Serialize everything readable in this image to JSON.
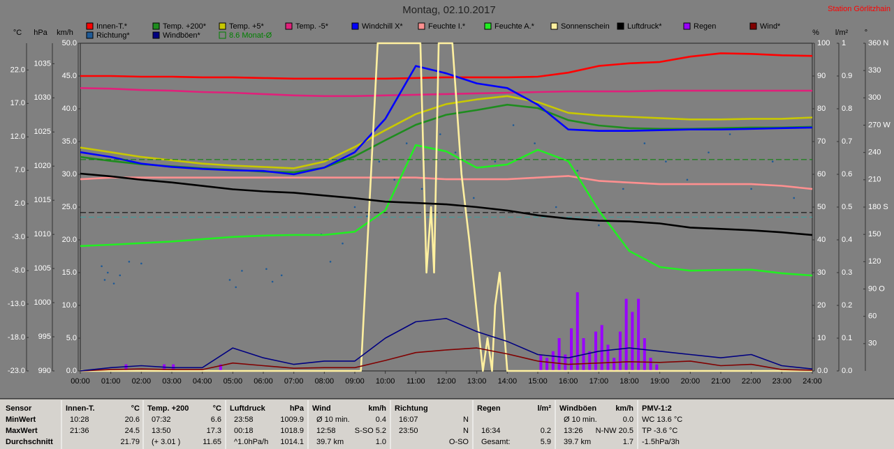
{
  "chart_data": {
    "type": "line",
    "title": "Montag, 02.10.2017",
    "station": "Station Görlitzhain",
    "ylabel": "°C",
    "y2label": "hPa",
    "y3label": "km/h",
    "y4label": "%",
    "y5label": "l/m²",
    "y6label": "°",
    "xlim": [
      0,
      24
    ],
    "xticks": [
      {
        "value": 0,
        "label": "00:00"
      },
      {
        "value": 1,
        "label": "01:00"
      },
      {
        "value": 2,
        "label": "02:00"
      },
      {
        "value": 3,
        "label": "03:00"
      },
      {
        "value": 4,
        "label": "04:00"
      },
      {
        "value": 5,
        "label": "05:00"
      },
      {
        "value": 6,
        "label": "06:00"
      },
      {
        "value": 7,
        "label": "07:00"
      },
      {
        "value": 8,
        "label": "08:00"
      },
      {
        "value": 9,
        "label": "09:00"
      },
      {
        "value": 10,
        "label": "10:00"
      },
      {
        "value": 11,
        "label": "11:00"
      },
      {
        "value": 12,
        "label": "12:00"
      },
      {
        "value": 13,
        "label": "13:00"
      },
      {
        "value": 14,
        "label": "14:00"
      },
      {
        "value": 15,
        "label": "15:00"
      },
      {
        "value": 16,
        "label": "16:00"
      },
      {
        "value": 17,
        "label": "17:00"
      },
      {
        "value": 18,
        "label": "18:00"
      },
      {
        "value": 19,
        "label": "19:00"
      },
      {
        "value": 20,
        "label": "20:00"
      },
      {
        "value": 21,
        "label": "21:00"
      },
      {
        "value": 22,
        "label": "22:00"
      },
      {
        "value": 23,
        "label": "23:00"
      },
      {
        "value": 24,
        "label": "24:00"
      }
    ],
    "ylim": [
      -23,
      26
    ],
    "yticks": [
      {
        "value": 22,
        "label": "22.0"
      },
      {
        "value": 17,
        "label": "17.0"
      },
      {
        "value": 12,
        "label": "12.0"
      },
      {
        "value": 7,
        "label": "7.0"
      },
      {
        "value": 2,
        "label": "2.0"
      },
      {
        "value": -3,
        "label": "-3.0"
      },
      {
        "value": -8,
        "label": "-8.0"
      },
      {
        "value": -13,
        "label": "-13.0"
      },
      {
        "value": -18,
        "label": "-18.0"
      },
      {
        "value": -23,
        "label": "-23.0"
      }
    ],
    "y2lim": [
      990,
      1038
    ],
    "y2ticks": [
      1035,
      1030,
      1025,
      1020,
      1015,
      1010,
      1005,
      1000,
      995,
      990
    ],
    "y3lim": [
      0,
      50
    ],
    "y3ticks": [
      {
        "value": 50,
        "label": "50.0"
      },
      {
        "value": 45,
        "label": "45.0"
      },
      {
        "value": 40,
        "label": "40.0"
      },
      {
        "value": 35,
        "label": "35.0"
      },
      {
        "value": 30,
        "label": "30.0"
      },
      {
        "value": 25,
        "label": "25.0"
      },
      {
        "value": 20,
        "label": "20.0"
      },
      {
        "value": 15,
        "label": "15.0"
      },
      {
        "value": 10,
        "label": "10.0"
      },
      {
        "value": 5,
        "label": "5.0"
      },
      {
        "value": 0,
        "label": "0.0"
      }
    ],
    "y4lim": [
      0,
      100
    ],
    "y4ticks": [
      100,
      90,
      80,
      70,
      60,
      50,
      40,
      30,
      20,
      10,
      {
        "value": 0,
        "label": "0.0"
      }
    ],
    "y5lim": [
      0,
      1
    ],
    "y5ticks": [
      1,
      0.9,
      0.8,
      0.7,
      0.6,
      0.5,
      0.4,
      0.3,
      0.2,
      0.1,
      {
        "value": 0,
        "label": "0.0"
      }
    ],
    "y6lim": [
      0,
      360
    ],
    "y6ticks": [
      {
        "value": 360,
        "label": "360 N"
      },
      330,
      300,
      {
        "value": 270,
        "label": "270 W"
      },
      240,
      210,
      {
        "value": 180,
        "label": "180 S"
      },
      150,
      120,
      {
        "value": 90,
        "label": "90 O"
      },
      60,
      30
    ],
    "grid": false,
    "reference_lines": [
      {
        "axis": "y2",
        "value": 1013.2,
        "color": "#000000"
      },
      {
        "axis": "y",
        "value": 0,
        "color": "#3aa0a0"
      }
    ],
    "x": [
      0,
      1,
      2,
      3,
      4,
      5,
      6,
      7,
      8,
      9,
      10,
      11,
      12,
      13,
      14,
      15,
      16,
      17,
      18,
      19,
      20,
      21,
      22,
      23,
      24
    ],
    "series": [
      {
        "name": "Innen-T.*",
        "color": "#ff0000",
        "axis": "y",
        "values": [
          21.1,
          21.1,
          21.0,
          21.0,
          20.9,
          20.9,
          20.8,
          20.7,
          20.7,
          20.7,
          20.7,
          20.8,
          20.9,
          20.9,
          20.9,
          21.0,
          21.6,
          22.6,
          23.0,
          23.2,
          24.0,
          24.5,
          24.4,
          24.2,
          24.1
        ]
      },
      {
        "name": "Temp. +200*",
        "color": "#1e8c1e",
        "axis": "y",
        "values": [
          9.0,
          8.4,
          7.9,
          7.6,
          7.3,
          7.1,
          6.8,
          6.7,
          7.4,
          9.1,
          11.5,
          13.8,
          15.3,
          16.0,
          16.8,
          16.3,
          14.5,
          13.7,
          13.3,
          13.2,
          13.2,
          13.3,
          13.4,
          13.4,
          13.5
        ]
      },
      {
        "name": "Temp. +5*",
        "color": "#c8c800",
        "axis": "y",
        "values": [
          10.4,
          9.7,
          9.0,
          8.5,
          8.0,
          7.7,
          7.5,
          7.3,
          8.3,
          10.5,
          13.0,
          15.4,
          16.9,
          17.6,
          18.1,
          17.2,
          15.6,
          15.2,
          15.0,
          14.8,
          14.6,
          14.6,
          14.7,
          14.7,
          14.9
        ]
      },
      {
        "name": "Temp. -5*",
        "color": "#e0207a",
        "axis": "y",
        "values": [
          19.3,
          19.2,
          19.0,
          18.9,
          18.7,
          18.6,
          18.4,
          18.2,
          18.1,
          18.1,
          18.2,
          18.3,
          18.4,
          18.5,
          18.6,
          18.7,
          18.8,
          18.8,
          18.8,
          18.9,
          18.9,
          18.9,
          18.9,
          18.9,
          18.9
        ]
      },
      {
        "name": "Windchill X*",
        "color": "#0000ff",
        "axis": "y",
        "values": [
          9.7,
          9.0,
          8.0,
          7.5,
          7.2,
          7.0,
          6.9,
          6.4,
          7.4,
          9.7,
          14.7,
          22.6,
          21.5,
          20.0,
          19.3,
          16.8,
          13.1,
          12.9,
          12.9,
          13.0,
          13.1,
          13.1,
          13.2,
          13.3,
          13.4
        ]
      },
      {
        "name": "Feuchte I.*",
        "color": "#ff9090",
        "axis": "y4",
        "values": [
          58.5,
          59,
          59,
          59,
          59,
          59,
          59,
          59,
          59,
          59,
          59,
          59,
          58.5,
          58.5,
          58.5,
          59,
          59.5,
          58,
          57.5,
          57,
          57,
          57,
          57,
          56.5,
          55.5
        ]
      },
      {
        "name": "Feuchte A.*",
        "color": "#22ee22",
        "axis": "y4",
        "values": [
          38.1,
          38.5,
          39.0,
          39.5,
          40.2,
          40.9,
          41.3,
          41.5,
          41.5,
          42.5,
          49.0,
          68.9,
          67.0,
          62.0,
          63.0,
          67.5,
          64.0,
          49.0,
          36.6,
          31.7,
          30.6,
          30.8,
          30.9,
          29.8,
          29.1
        ]
      },
      {
        "name": "Sonnenschein",
        "color": "#fff0a0",
        "axis": "y4",
        "x": [
          0,
          9.2,
          9.75,
          11.15,
          11.35,
          11.5,
          11.6,
          11.75,
          12.2,
          12.5,
          12.75,
          13.2,
          13.35,
          13.5,
          13.6,
          13.75,
          14.0,
          24
        ],
        "values": [
          0,
          0,
          100,
          100,
          30,
          50,
          30,
          100,
          100,
          60,
          40,
          0,
          10,
          0,
          20,
          30,
          0,
          0
        ]
      },
      {
        "name": "Luftdruck*",
        "color": "#000000",
        "axis": "y2",
        "values": [
          1018.9,
          1018.5,
          1018.0,
          1017.6,
          1017.1,
          1016.6,
          1016.3,
          1016.1,
          1015.7,
          1015.3,
          1014.8,
          1014.6,
          1014.4,
          1014.0,
          1013.5,
          1012.8,
          1012.3,
          1012.0,
          1011.9,
          1011.6,
          1011.0,
          1010.8,
          1010.6,
          1010.3,
          1009.9
        ]
      },
      {
        "name": "Regen",
        "color": "#9900ff",
        "axis": "y5",
        "style": "bar",
        "x": [
          1.5,
          2.75,
          3.05,
          4.6,
          15.1,
          15.3,
          15.5,
          15.7,
          15.9,
          16.1,
          16.3,
          16.5,
          16.7,
          16.9,
          17.1,
          17.3,
          17.5,
          17.7,
          17.9,
          18.1,
          18.3,
          18.5,
          18.7,
          18.9
        ],
        "values": [
          0.02,
          0.02,
          0.02,
          0.02,
          0.05,
          0.04,
          0.06,
          0.1,
          0.05,
          0.13,
          0.24,
          0.1,
          0.06,
          0.12,
          0.14,
          0.08,
          0.04,
          0.12,
          0.22,
          0.18,
          0.22,
          0.1,
          0.04,
          0.02
        ]
      },
      {
        "name": "Wind*",
        "color": "#800000",
        "axis": "y3",
        "values": [
          0,
          0.2,
          0.3,
          0.2,
          0.2,
          1.2,
          0.8,
          0.4,
          0.5,
          0.5,
          1.6,
          2.8,
          3.2,
          3.5,
          2.6,
          1.5,
          1.0,
          1.2,
          1.4,
          1.3,
          1.5,
          0.8,
          1.0,
          0.2,
          0.1
        ]
      },
      {
        "name": "Richtung*",
        "color": "#1e5a96",
        "axis": "y6",
        "style": "scatter",
        "x": [
          0.7,
          0.8,
          0.9,
          1.1,
          1.3,
          1.6,
          2.0,
          4.9,
          5.1,
          5.3,
          6.1,
          6.3,
          6.6,
          7.9,
          8.2,
          8.6,
          9.0,
          9.4,
          9.8,
          10.3,
          10.7,
          11.2,
          11.8,
          12.3,
          12.9,
          13.6,
          14.2,
          14.9,
          15.6,
          16.3,
          17.0,
          17.8,
          18.5,
          19.2,
          19.9,
          20.6,
          21.3,
          22.0,
          22.7,
          23.4
        ],
        "values": [
          115,
          100,
          108,
          96,
          105,
          120,
          118,
          100,
          92,
          110,
          112,
          98,
          105,
          150,
          120,
          140,
          180,
          170,
          230,
          210,
          250,
          200,
          260,
          240,
          190,
          230,
          270,
          250,
          180,
          220,
          160,
          200,
          250,
          230,
          210,
          240,
          260,
          200,
          230,
          190
        ]
      },
      {
        "name": "Windböen*",
        "color": "#000080",
        "axis": "y3",
        "values": [
          0,
          0.5,
          0.8,
          0.5,
          0.5,
          3.5,
          2.0,
          1.0,
          1.5,
          1.5,
          5.0,
          7.5,
          8.0,
          6.0,
          4.5,
          2.5,
          2.0,
          3.0,
          3.5,
          3.0,
          2.5,
          2.0,
          2.5,
          0.8,
          0.3
        ]
      },
      {
        "name": "8.6 Monat-Ø",
        "color": "#008000",
        "axis": "y",
        "dashed": true,
        "x": [
          0,
          24
        ],
        "values": [
          8.6,
          8.6
        ]
      }
    ]
  },
  "table": {
    "row_labels": [
      "Sensor",
      "MinWert",
      "MaxWert",
      "Durchschnitt"
    ],
    "columns": [
      {
        "header": "Innen-T.",
        "unit": "°C",
        "rows": [
          [
            "10:28",
            "20.6"
          ],
          [
            "21:36",
            "24.5"
          ],
          [
            null,
            "21.79"
          ]
        ]
      },
      {
        "header": "Temp. +200",
        "unit": "°C",
        "rows": [
          [
            "07:32",
            "6.6"
          ],
          [
            "13:50",
            "17.3"
          ],
          [
            "(+ 3.01 )",
            "11.65"
          ]
        ]
      },
      {
        "header": "Luftdruck",
        "unit": "hPa",
        "rows": [
          [
            "23:58",
            "1009.9"
          ],
          [
            "00:18",
            "1018.9"
          ],
          [
            "^1.0hPa/h",
            "1014.1"
          ]
        ]
      },
      {
        "header": "Wind",
        "unit": "km/h",
        "rows": [
          [
            "Ø 10 min.",
            "0.4"
          ],
          [
            "12:58",
            "S-SO 5.2"
          ],
          [
            "39.7 km",
            "1.0"
          ]
        ]
      },
      {
        "header": "Richtung",
        "rows": [
          [
            "16:07",
            "N"
          ],
          [
            "23:50",
            "N"
          ],
          [
            null,
            "O-SO"
          ]
        ]
      },
      {
        "header": "Regen",
        "unit": "l/m²",
        "rows": [
          null,
          [
            "16:34",
            "0.2"
          ],
          [
            "Gesamt:",
            "5.9"
          ]
        ]
      },
      {
        "header": "Windböen",
        "unit": "km/h",
        "rows": [
          [
            "Ø 10 min.",
            "0.0"
          ],
          [
            "13:26",
            "N-NW 20.5"
          ],
          [
            "39.7 km",
            "1.7"
          ]
        ]
      },
      {
        "header": "PMV-1:2",
        "rows": [
          [
            "WC 13.6 °C"
          ],
          [
            "TP -3.6 °C"
          ],
          [
            "-1.5hPa/3h"
          ]
        ]
      }
    ]
  }
}
